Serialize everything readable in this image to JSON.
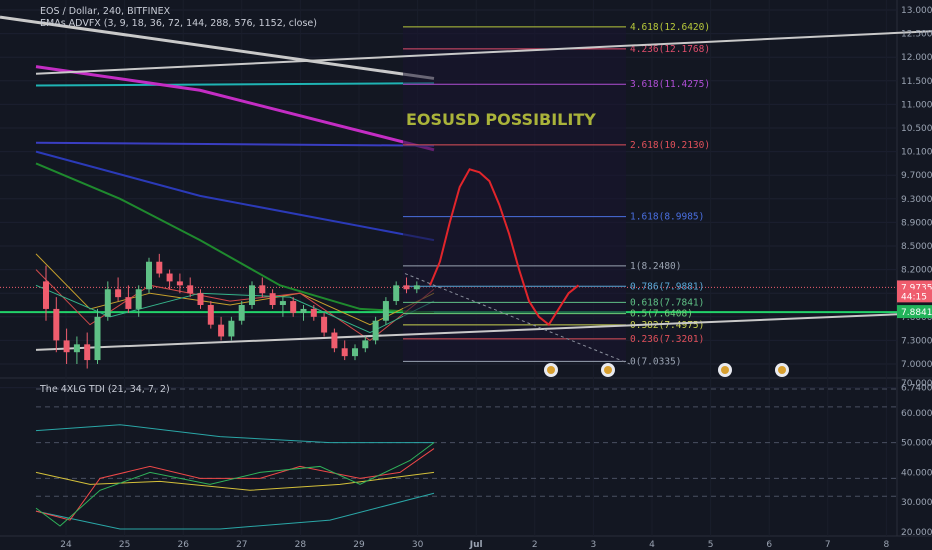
{
  "header": {
    "symbol": "EOS / Dollar, 240, BITFINEX",
    "indicator": "EMAs ADVFX (3, 9, 18, 36, 72, 144, 288, 576, 1152, close)",
    "sub_indicator": "The 4XLG TDI (21, 34, 7, 2)"
  },
  "annotation": "EOSUSD POSSIBILITY",
  "colors": {
    "background": "#131722",
    "bull": "#5fc086",
    "bear": "#ef5d6e",
    "projection": "#e1252b",
    "trendline": "#c9c9c9",
    "accent_green": "#22d36a"
  },
  "chart_data": [
    {
      "type": "line",
      "panel": "price",
      "price_axis": {
        "ticks": [
          "13.0000",
          "12.5000",
          "12.0000",
          "11.5000",
          "11.0000",
          "10.5000",
          "10.1000",
          "9.7000",
          "9.3000",
          "8.9000",
          "8.5000",
          "8.2000",
          "7.9000",
          "7.6000",
          "7.3000",
          "7.0000",
          "6.7400"
        ],
        "tags": [
          {
            "label": "7.9735",
            "color": "#ef5d6e",
            "value": 7.9735
          },
          {
            "label": "44:15",
            "color": "#ef5d6e",
            "value": 7.86
          },
          {
            "label": "7.8841",
            "color": "#22b35a",
            "value": 7.66
          }
        ]
      },
      "time_axis": [
        "24",
        "25",
        "26",
        "27",
        "28",
        "29",
        "30",
        "Jul",
        "2",
        "3",
        "4",
        "5",
        "6",
        "7",
        "8"
      ],
      "fibonacci": [
        {
          "label": "4.618(12.6420)",
          "value": 12.642,
          "color": "#b8c93b"
        },
        {
          "label": "4.236(12.1768)",
          "value": 12.1768,
          "color": "#e04e6c"
        },
        {
          "label": "3.618(11.4275)",
          "value": 11.4275,
          "color": "#b04fd6"
        },
        {
          "label": "2.618(10.2130)",
          "value": 10.213,
          "color": "#e0505a"
        },
        {
          "label": "1.618(8.9985)",
          "value": 8.9985,
          "color": "#4a6fe0"
        },
        {
          "label": "1(8.2480)",
          "value": 8.248,
          "color": "#9aa3b2"
        },
        {
          "label": "0.786(7.9881)",
          "value": 7.9881,
          "color": "#5aa7d6"
        },
        {
          "label": "0.618(7.7841)",
          "value": 7.7841,
          "color": "#5fc086"
        },
        {
          "label": "0.5(7.6408)",
          "value": 7.6408,
          "color": "#6fd07a"
        },
        {
          "label": "0.382(7.4975)",
          "value": 7.4975,
          "color": "#c8d04e"
        },
        {
          "label": "0.236(7.3201)",
          "value": 7.3201,
          "color": "#e0505a"
        },
        {
          "label": "0(7.0335)",
          "value": 7.0335,
          "color": "#9aa3b2"
        }
      ],
      "candles": [
        {
          "o": 8.05,
          "h": 8.25,
          "l": 7.55,
          "c": 7.7
        },
        {
          "o": 7.7,
          "h": 7.85,
          "l": 7.15,
          "c": 7.3
        },
        {
          "o": 7.3,
          "h": 7.45,
          "l": 7.0,
          "c": 7.15
        },
        {
          "o": 7.15,
          "h": 7.35,
          "l": 7.0,
          "c": 7.25
        },
        {
          "o": 7.25,
          "h": 7.4,
          "l": 6.95,
          "c": 7.05
        },
        {
          "o": 7.05,
          "h": 7.7,
          "l": 7.0,
          "c": 7.6
        },
        {
          "o": 7.6,
          "h": 8.05,
          "l": 7.55,
          "c": 7.95
        },
        {
          "o": 7.95,
          "h": 8.1,
          "l": 7.8,
          "c": 7.85
        },
        {
          "o": 7.85,
          "h": 8.0,
          "l": 7.65,
          "c": 7.7
        },
        {
          "o": 7.7,
          "h": 8.0,
          "l": 7.6,
          "c": 7.95
        },
        {
          "o": 7.95,
          "h": 8.35,
          "l": 7.9,
          "c": 8.3
        },
        {
          "o": 8.3,
          "h": 8.4,
          "l": 8.1,
          "c": 8.15
        },
        {
          "o": 8.15,
          "h": 8.2,
          "l": 7.95,
          "c": 8.05
        },
        {
          "o": 8.05,
          "h": 8.15,
          "l": 7.9,
          "c": 8.0
        },
        {
          "o": 8.0,
          "h": 8.1,
          "l": 7.85,
          "c": 7.9
        },
        {
          "o": 7.9,
          "h": 7.95,
          "l": 7.7,
          "c": 7.75
        },
        {
          "o": 7.75,
          "h": 7.8,
          "l": 7.45,
          "c": 7.5
        },
        {
          "o": 7.5,
          "h": 7.6,
          "l": 7.3,
          "c": 7.35
        },
        {
          "o": 7.35,
          "h": 7.6,
          "l": 7.3,
          "c": 7.55
        },
        {
          "o": 7.55,
          "h": 7.8,
          "l": 7.5,
          "c": 7.75
        },
        {
          "o": 7.75,
          "h": 8.05,
          "l": 7.7,
          "c": 8.0
        },
        {
          "o": 8.0,
          "h": 8.1,
          "l": 7.85,
          "c": 7.9
        },
        {
          "o": 7.9,
          "h": 7.95,
          "l": 7.7,
          "c": 7.75
        },
        {
          "o": 7.75,
          "h": 7.85,
          "l": 7.6,
          "c": 7.8
        },
        {
          "o": 7.8,
          "h": 7.85,
          "l": 7.6,
          "c": 7.65
        },
        {
          "o": 7.65,
          "h": 7.75,
          "l": 7.55,
          "c": 7.7
        },
        {
          "o": 7.7,
          "h": 7.75,
          "l": 7.55,
          "c": 7.6
        },
        {
          "o": 7.6,
          "h": 7.65,
          "l": 7.35,
          "c": 7.4
        },
        {
          "o": 7.4,
          "h": 7.45,
          "l": 7.15,
          "c": 7.2
        },
        {
          "o": 7.2,
          "h": 7.3,
          "l": 7.05,
          "c": 7.1
        },
        {
          "o": 7.1,
          "h": 7.25,
          "l": 7.05,
          "c": 7.2
        },
        {
          "o": 7.2,
          "h": 7.35,
          "l": 7.15,
          "c": 7.3
        },
        {
          "o": 7.3,
          "h": 7.6,
          "l": 7.25,
          "c": 7.55
        },
        {
          "o": 7.55,
          "h": 7.85,
          "l": 7.5,
          "c": 7.8
        },
        {
          "o": 7.8,
          "h": 8.05,
          "l": 7.75,
          "c": 8.0
        },
        {
          "o": 8.0,
          "h": 8.1,
          "l": 7.9,
          "c": 7.95
        },
        {
          "o": 7.95,
          "h": 8.05,
          "l": 7.9,
          "c": 8.0
        }
      ],
      "projection": [
        8.0,
        8.3,
        8.9,
        9.5,
        9.8,
        9.75,
        9.6,
        9.2,
        8.7,
        8.2,
        7.8,
        7.6,
        7.5,
        7.7,
        7.9,
        8.0
      ]
    },
    {
      "type": "line",
      "panel": "TDI",
      "axis_ticks": [
        "70.0000",
        "60.0000",
        "50.0000",
        "40.0000",
        "30.0000",
        "20.0000"
      ],
      "ylim": [
        20,
        70
      ],
      "levels": [
        68,
        62,
        50,
        38,
        32
      ]
    }
  ]
}
